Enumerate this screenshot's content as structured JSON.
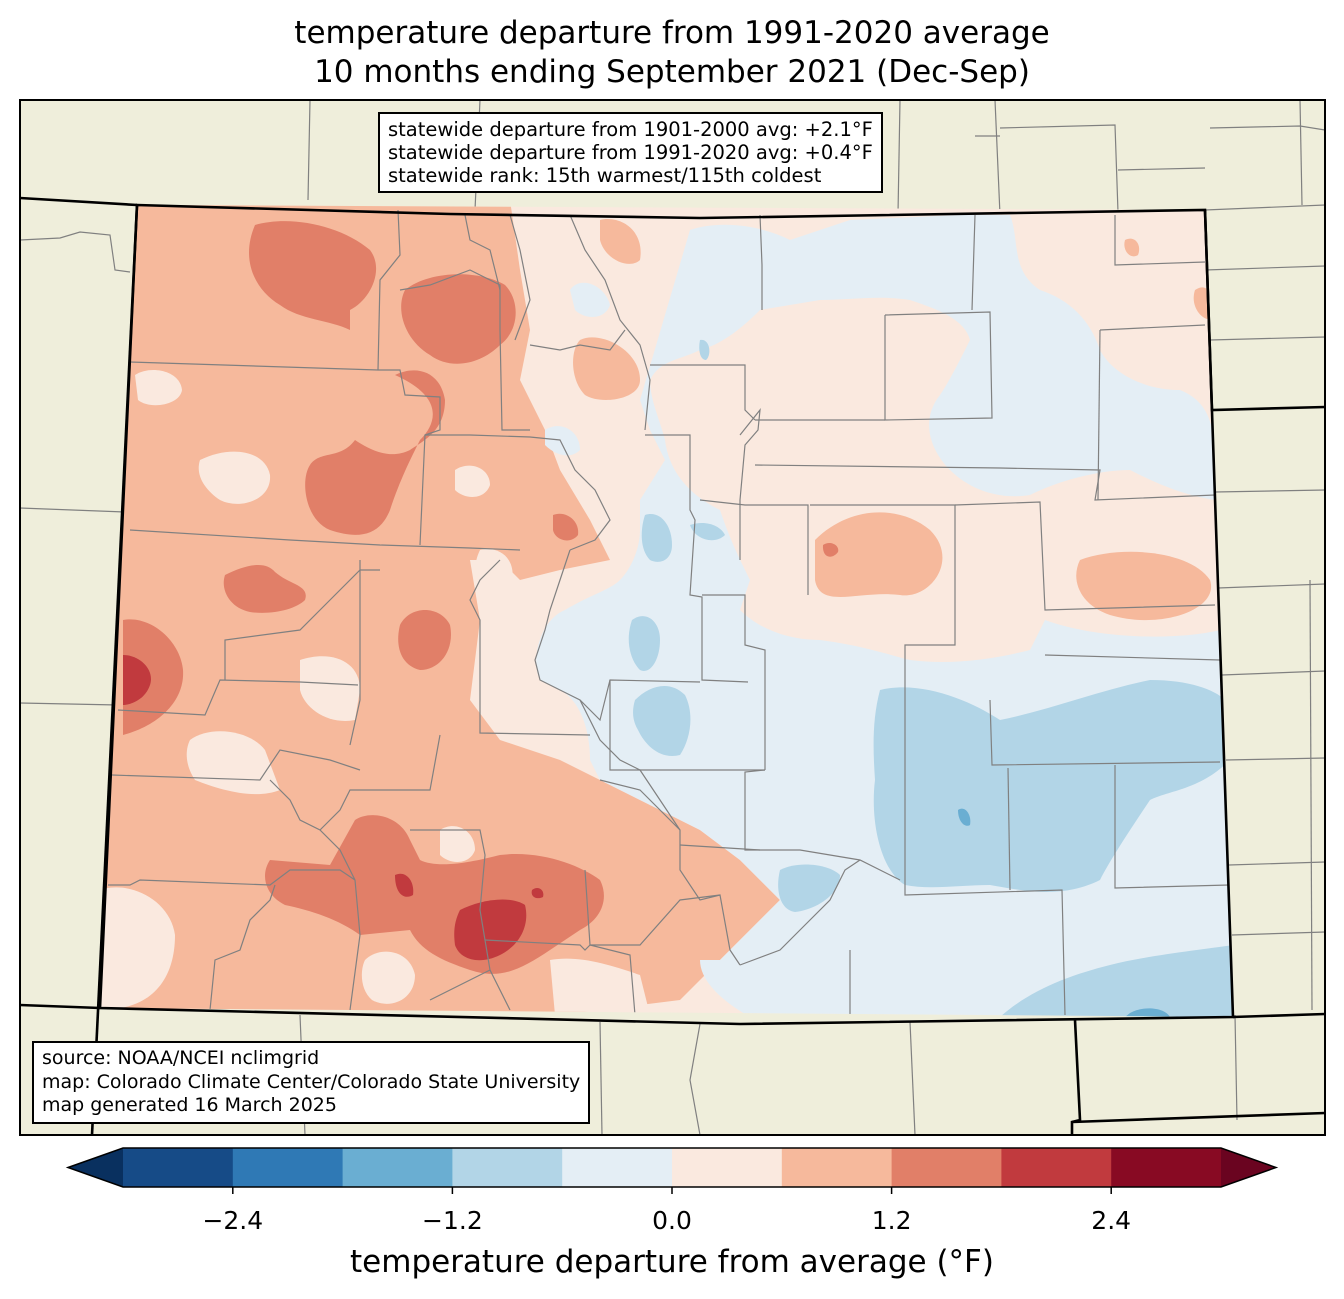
{
  "title": {
    "line1": "temperature departure from 1991-2020 average",
    "line2": "10 months ending September 2021 (Dec-Sep)"
  },
  "stats": {
    "line1": "statewide departure from 1901-2000 avg: +2.1°F",
    "line2": "statewide departure from 1991-2020 avg: +0.4°F",
    "line3": "statewide rank: 15th warmest/115th coldest"
  },
  "source": {
    "line1": "source: NOAA/NCEI nclimgrid",
    "line2": "map: Colorado Climate Center/Colorado State University",
    "line3": "map generated 16 March 2025"
  },
  "colorbar": {
    "label": "temperature departure from average (°F)",
    "ticks": [
      "−2.4",
      "−1.2",
      "0.0",
      "1.2",
      "2.4"
    ],
    "tick_values": [
      -2.4,
      -1.2,
      0.0,
      1.2,
      2.4
    ],
    "range": [
      -3.0,
      3.0
    ],
    "step": 0.6,
    "colors": [
      "#164b87",
      "#2f79b5",
      "#6aaed2",
      "#b2d5e7",
      "#e4eef5",
      "#fae9df",
      "#f6b99c",
      "#e17f68",
      "#c13a3e",
      "#880a23"
    ],
    "under_color": "#09305f",
    "over_color": "#6a0420"
  },
  "map_colors": {
    "land": "#efeedb",
    "county_line": "#808080",
    "state_line": "#000000"
  }
}
